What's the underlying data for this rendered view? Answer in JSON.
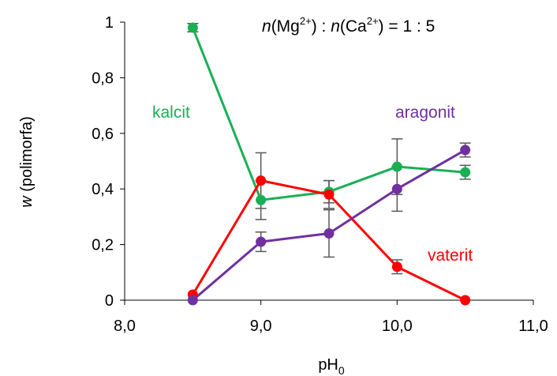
{
  "chart_data": {
    "type": "line",
    "title": "",
    "annotation": {
      "n1": "n",
      "mg": "(Mg",
      "mg_sup": "2+",
      "mid": ") : ",
      "n2": "n",
      "ca": "(Ca",
      "ca_sup": "2+",
      "end": ") = 1 : 5"
    },
    "xlabel": {
      "main": "pH",
      "sub": "0"
    },
    "ylabel": {
      "italic": "w",
      "rest": " (polimorfa)"
    },
    "xlim": [
      8.0,
      11.0
    ],
    "ylim": [
      0,
      1
    ],
    "xticks": [
      8.0,
      9.0,
      10.0,
      11.0
    ],
    "xtick_labels": [
      "8,0",
      "9,0",
      "10,0",
      "11,0"
    ],
    "yticks": [
      0,
      0.2,
      0.4,
      0.6,
      0.8,
      1
    ],
    "ytick_labels": [
      "0",
      "0,2",
      "0,4",
      "0,6",
      "0,8",
      "1"
    ],
    "grid": false,
    "x": [
      8.5,
      9.0,
      9.5,
      10.0,
      10.5
    ],
    "series": [
      {
        "name": "kalcit",
        "color": "#1aaf54",
        "values": [
          0.98,
          0.36,
          0.39,
          0.48,
          0.46
        ],
        "errors": [
          0.015,
          0.07,
          0.04,
          0.1,
          0.025
        ]
      },
      {
        "name": "vaterit",
        "color": "#ff0000",
        "values": [
          0.02,
          0.43,
          0.38,
          0.12,
          0.0
        ],
        "errors": [
          0.0,
          0.1,
          0.05,
          0.025,
          0.0
        ]
      },
      {
        "name": "aragonit",
        "color": "#7030a0",
        "values": [
          0.0,
          0.21,
          0.24,
          0.4,
          0.54
        ],
        "errors": [
          0.0,
          0.035,
          0.085,
          0.08,
          0.025
        ]
      }
    ],
    "series_labels": [
      {
        "text": "kalcit",
        "color": "#1aaf54"
      },
      {
        "text": "aragonit",
        "color": "#7030a0"
      },
      {
        "text": "vaterit",
        "color": "#ff0000"
      }
    ]
  }
}
